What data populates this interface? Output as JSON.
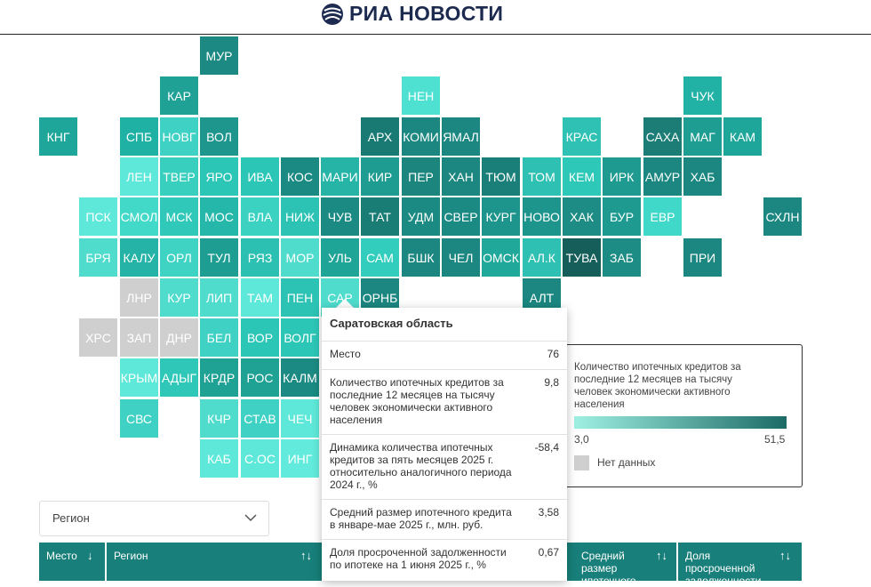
{
  "header": {
    "logo_text": "РИА НОВОСТИ"
  },
  "colors": {
    "accent": "#187f7a",
    "no_data": "#cfcfcf",
    "scale_min": "#9ff0e3",
    "scale_max": "#1d6b66"
  },
  "tilemap": {
    "tiles": [
      {
        "label": "МУР",
        "color": "#1c8a83",
        "r": 0,
        "c": 4
      },
      {
        "label": "КАР",
        "color": "#1fa196",
        "r": 1,
        "c": 3
      },
      {
        "label": "НЕН",
        "color": "#4ee1d1",
        "r": 1,
        "c": 9
      },
      {
        "label": "ЧУК",
        "color": "#22b2a5",
        "r": 1,
        "c": 16
      },
      {
        "label": "КНГ",
        "color": "#1fa69a",
        "r": 2,
        "c": 0
      },
      {
        "label": "СПБ",
        "color": "#1fb2a4",
        "r": 2,
        "c": 2
      },
      {
        "label": "НОВГ",
        "color": "#3fd1c3",
        "r": 2,
        "c": 3
      },
      {
        "label": "ВОЛ",
        "color": "#1e958d",
        "r": 2,
        "c": 4
      },
      {
        "label": "АРХ",
        "color": "#197a74",
        "r": 2,
        "c": 8
      },
      {
        "label": "КОМИ",
        "color": "#1b8780",
        "r": 2,
        "c": 9
      },
      {
        "label": "ЯМАЛ",
        "color": "#1b8780",
        "r": 2,
        "c": 10
      },
      {
        "label": "КРАС",
        "color": "#2fc2b4",
        "r": 2,
        "c": 13
      },
      {
        "label": "САХА",
        "color": "#1b7d76",
        "r": 2,
        "c": 15
      },
      {
        "label": "МАГ",
        "color": "#1e9d92",
        "r": 2,
        "c": 16
      },
      {
        "label": "КАМ",
        "color": "#1fa69a",
        "r": 2,
        "c": 17
      },
      {
        "label": "ЛЕН",
        "color": "#5ee8d9",
        "r": 3,
        "c": 2
      },
      {
        "label": "ТВЕР",
        "color": "#38cfbf",
        "r": 3,
        "c": 3
      },
      {
        "label": "ЯРО",
        "color": "#2cc6b7",
        "r": 3,
        "c": 4
      },
      {
        "label": "ИВА",
        "color": "#2cc6b7",
        "r": 3,
        "c": 5
      },
      {
        "label": "КОС",
        "color": "#1b8a82",
        "r": 3,
        "c": 6
      },
      {
        "label": "МАРИ",
        "color": "#26b4a7",
        "r": 3,
        "c": 7
      },
      {
        "label": "КИР",
        "color": "#1f9c91",
        "r": 3,
        "c": 8
      },
      {
        "label": "ПЕР",
        "color": "#1b857e",
        "r": 3,
        "c": 9
      },
      {
        "label": "ХАН",
        "color": "#1b8780",
        "r": 3,
        "c": 10
      },
      {
        "label": "ТЮМ",
        "color": "#1a7f78",
        "r": 3,
        "c": 11
      },
      {
        "label": "ТОМ",
        "color": "#2ec0b2",
        "r": 3,
        "c": 12
      },
      {
        "label": "КЕМ",
        "color": "#2ec8b8",
        "r": 3,
        "c": 13
      },
      {
        "label": "ИРК",
        "color": "#1e9a90",
        "r": 3,
        "c": 14
      },
      {
        "label": "АМУР",
        "color": "#1b8780",
        "r": 3,
        "c": 15
      },
      {
        "label": "ХАБ",
        "color": "#1b8780",
        "r": 3,
        "c": 16
      },
      {
        "label": "ПСК",
        "color": "#5ee8d9",
        "r": 4,
        "c": 1
      },
      {
        "label": "СМОЛ",
        "color": "#43d9c9",
        "r": 4,
        "c": 2
      },
      {
        "label": "МСК",
        "color": "#30c8b8",
        "r": 4,
        "c": 3
      },
      {
        "label": "МОС",
        "color": "#25b8aa",
        "r": 4,
        "c": 4
      },
      {
        "label": "ВЛА",
        "color": "#3bd2c2",
        "r": 4,
        "c": 5
      },
      {
        "label": "НИЖ",
        "color": "#2cc3b4",
        "r": 4,
        "c": 6
      },
      {
        "label": "ЧУВ",
        "color": "#1b8a82",
        "r": 4,
        "c": 7
      },
      {
        "label": "ТАТ",
        "color": "#197c75",
        "r": 4,
        "c": 8
      },
      {
        "label": "УДМ",
        "color": "#1b8a82",
        "r": 4,
        "c": 9
      },
      {
        "label": "СВЕР",
        "color": "#1b8a82",
        "r": 4,
        "c": 10
      },
      {
        "label": "КУРГ",
        "color": "#1d958c",
        "r": 4,
        "c": 11
      },
      {
        "label": "НОВО",
        "color": "#1d958c",
        "r": 4,
        "c": 12
      },
      {
        "label": "ХАК",
        "color": "#1c8c84",
        "r": 4,
        "c": 13
      },
      {
        "label": "БУР",
        "color": "#1e9a90",
        "r": 4,
        "c": 14
      },
      {
        "label": "ЕВР",
        "color": "#40d8c8",
        "r": 4,
        "c": 15
      },
      {
        "label": "СХЛН",
        "color": "#1b8780",
        "r": 4,
        "c": 18
      },
      {
        "label": "БРЯ",
        "color": "#4fdccd",
        "r": 5,
        "c": 1
      },
      {
        "label": "КАЛУ",
        "color": "#24b3a6",
        "r": 5,
        "c": 2
      },
      {
        "label": "ОРЛ",
        "color": "#3ed3c3",
        "r": 5,
        "c": 3
      },
      {
        "label": "ТУЛ",
        "color": "#1e9d92",
        "r": 5,
        "c": 4
      },
      {
        "label": "РЯЗ",
        "color": "#2bc0b2",
        "r": 5,
        "c": 5
      },
      {
        "label": "МОР",
        "color": "#4fdccd",
        "r": 5,
        "c": 6
      },
      {
        "label": "УЛЬ",
        "color": "#1fa498",
        "r": 5,
        "c": 7
      },
      {
        "label": "САМ",
        "color": "#33cdbd",
        "r": 5,
        "c": 8
      },
      {
        "label": "БШК",
        "color": "#1b8780",
        "r": 5,
        "c": 9
      },
      {
        "label": "ЧЕЛ",
        "color": "#1b8780",
        "r": 5,
        "c": 10
      },
      {
        "label": "ОМСК",
        "color": "#20a89b",
        "r": 5,
        "c": 11
      },
      {
        "label": "АЛ.К",
        "color": "#2ec0b2",
        "r": 5,
        "c": 12
      },
      {
        "label": "ТУВА",
        "color": "#155e5a",
        "r": 5,
        "c": 13
      },
      {
        "label": "ЗАБ",
        "color": "#1c8c84",
        "r": 5,
        "c": 14
      },
      {
        "label": "ПРИ",
        "color": "#1b8780",
        "r": 5,
        "c": 16
      },
      {
        "label": "ЛНР",
        "color": "#cfcfcf",
        "r": 6,
        "c": 2
      },
      {
        "label": "КУР",
        "color": "#4fdccd",
        "r": 6,
        "c": 3
      },
      {
        "label": "ЛИП",
        "color": "#4fdccd",
        "r": 6,
        "c": 4
      },
      {
        "label": "ТАМ",
        "color": "#5ee8d9",
        "r": 6,
        "c": 5
      },
      {
        "label": "ПЕН",
        "color": "#2cc3b4",
        "r": 6,
        "c": 6
      },
      {
        "label": "САР",
        "color": "#4fdccd",
        "r": 6,
        "c": 7
      },
      {
        "label": "ОРНБ",
        "color": "#1b8780",
        "r": 6,
        "c": 8
      },
      {
        "label": "АЛТ",
        "color": "#1b8780",
        "r": 6,
        "c": 12
      },
      {
        "label": "ХРС",
        "color": "#cfcfcf",
        "r": 7,
        "c": 1
      },
      {
        "label": "ЗАП",
        "color": "#cfcfcf",
        "r": 7,
        "c": 2
      },
      {
        "label": "ДНР",
        "color": "#cfcfcf",
        "r": 7,
        "c": 3
      },
      {
        "label": "БЕЛ",
        "color": "#3fd1c3",
        "r": 7,
        "c": 4
      },
      {
        "label": "ВОР",
        "color": "#2cc6b7",
        "r": 7,
        "c": 5
      },
      {
        "label": "ВОЛГ",
        "color": "#2cc6b7",
        "r": 7,
        "c": 6
      },
      {
        "label": "КРЫМ",
        "color": "#5ee8d9",
        "r": 8,
        "c": 2
      },
      {
        "label": "АДЫГ",
        "color": "#2fc8b8",
        "r": 8,
        "c": 3
      },
      {
        "label": "КРДР",
        "color": "#1fa194",
        "r": 8,
        "c": 4
      },
      {
        "label": "РОС",
        "color": "#1fa194",
        "r": 8,
        "c": 5
      },
      {
        "label": "КАЛМ",
        "color": "#1b8a82",
        "r": 8,
        "c": 6
      },
      {
        "label": "СВС",
        "color": "#3fd1c3",
        "r": 9,
        "c": 2
      },
      {
        "label": "КЧР",
        "color": "#4fdccd",
        "r": 9,
        "c": 4
      },
      {
        "label": "СТАВ",
        "color": "#3fd1c3",
        "r": 9,
        "c": 5
      },
      {
        "label": "ЧЕЧ",
        "color": "#5ee8d9",
        "r": 9,
        "c": 6
      },
      {
        "label": "КАБ",
        "color": "#5ee8d9",
        "r": 10,
        "c": 4
      },
      {
        "label": "С.ОС",
        "color": "#5ee8d9",
        "r": 10,
        "c": 5
      },
      {
        "label": "ИНГ",
        "color": "#62ebdc",
        "r": 10,
        "c": 6
      }
    ]
  },
  "tooltip": {
    "title": "Саратовская область",
    "rows": [
      {
        "label": "Место",
        "value": "76"
      },
      {
        "label": "Количество ипотечных кредитов за последние 12 месяцев на тысячу человек экономически активного населения",
        "value": "9,8"
      },
      {
        "label": "Динамика количества ипотечных кредитов за пять месяцев 2025 г. относительно аналогичного периода 2024 г., %",
        "value": "-58,4"
      },
      {
        "label": "Средний размер ипотечного кредита в январе-мае 2025 г., млн. руб.",
        "value": "3,58"
      },
      {
        "label": "Доля просроченной задолженности по ипотеке на 1 июня 2025 г., %",
        "value": "0,67"
      }
    ]
  },
  "legend": {
    "title": "Количество ипотечных кредитов за последние 12 месяцев на тысячу человек экономически активного населения",
    "min": "3,0",
    "max": "51,5",
    "no_data": "Нет данных"
  },
  "filter": {
    "label": "Регион"
  },
  "table": {
    "headers": [
      {
        "label": "Место",
        "sort": "↓"
      },
      {
        "label": "Регион",
        "sort": "↑↓"
      },
      {
        "label": "Средний размер ипотечного",
        "sort": "↑↓"
      },
      {
        "label": "Доля просроченной задолженности",
        "sort": "↑↓"
      }
    ]
  }
}
